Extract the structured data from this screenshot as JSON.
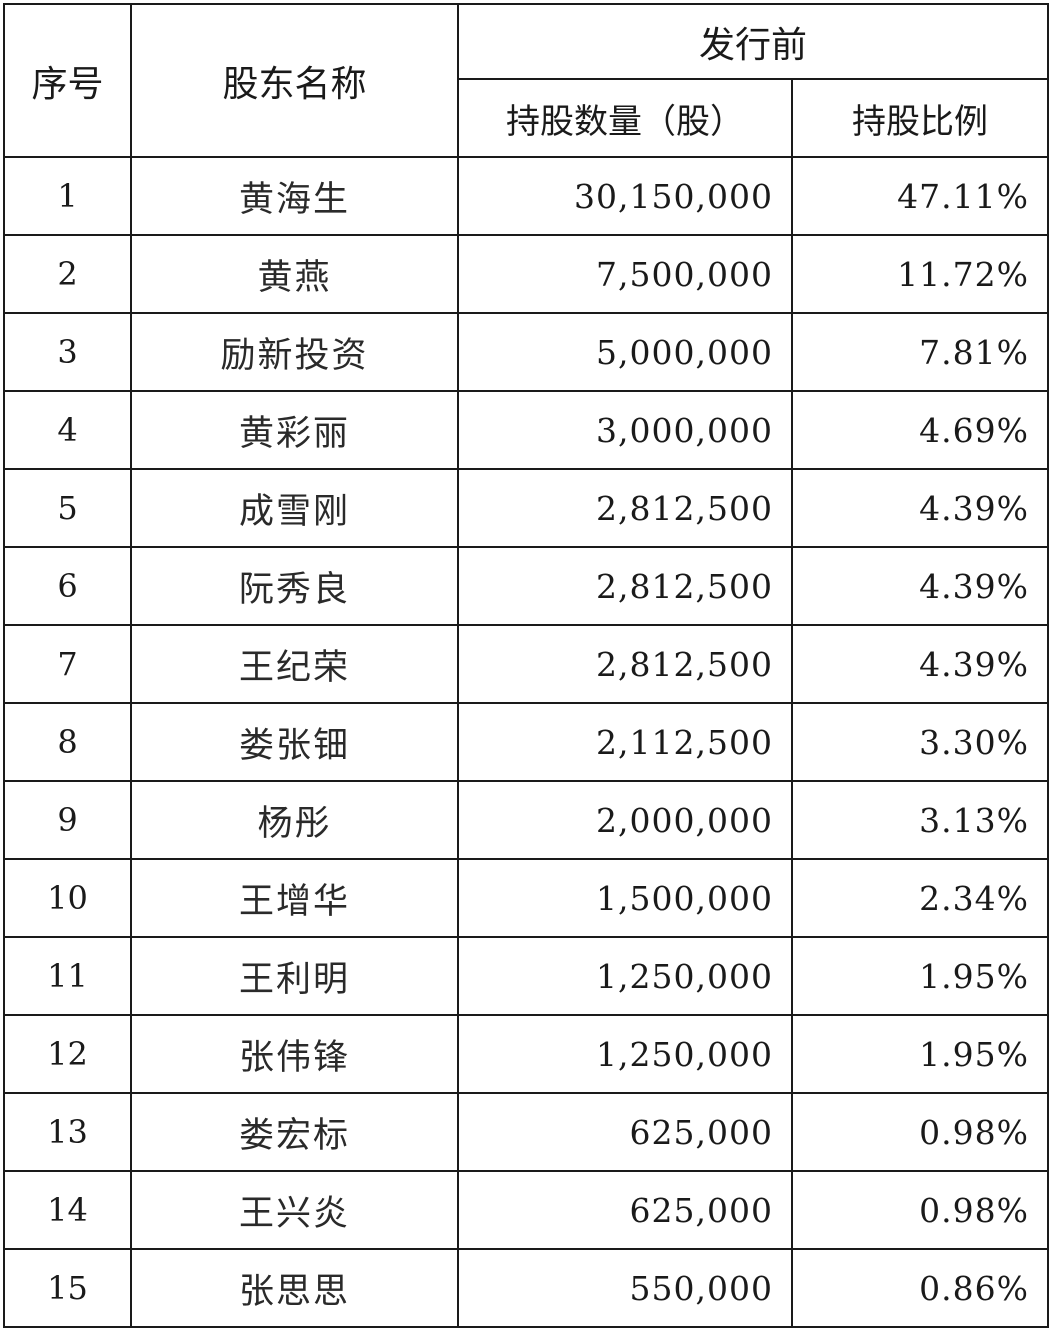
{
  "header": {
    "seq": "序号",
    "name": "股东名称",
    "group": "发行前",
    "shares": "持股数量（股）",
    "ratio": "持股比例"
  },
  "rows": [
    {
      "seq": "1",
      "name": "黄海生",
      "shares": "30,150,000",
      "ratio": "47.11%"
    },
    {
      "seq": "2",
      "name": "黄燕",
      "shares": "7,500,000",
      "ratio": "11.72%"
    },
    {
      "seq": "3",
      "name": "励新投资",
      "shares": "5,000,000",
      "ratio": "7.81%"
    },
    {
      "seq": "4",
      "name": "黄彩丽",
      "shares": "3,000,000",
      "ratio": "4.69%"
    },
    {
      "seq": "5",
      "name": "成雪刚",
      "shares": "2,812,500",
      "ratio": "4.39%"
    },
    {
      "seq": "6",
      "name": "阮秀良",
      "shares": "2,812,500",
      "ratio": "4.39%"
    },
    {
      "seq": "7",
      "name": "王纪荣",
      "shares": "2,812,500",
      "ratio": "4.39%"
    },
    {
      "seq": "8",
      "name": "娄张钿",
      "shares": "2,112,500",
      "ratio": "3.30%"
    },
    {
      "seq": "9",
      "name": "杨彤",
      "shares": "2,000,000",
      "ratio": "3.13%"
    },
    {
      "seq": "10",
      "name": "王增华",
      "shares": "1,500,000",
      "ratio": "2.34%"
    },
    {
      "seq": "11",
      "name": "王利明",
      "shares": "1,250,000",
      "ratio": "1.95%"
    },
    {
      "seq": "12",
      "name": "张伟锋",
      "shares": "1,250,000",
      "ratio": "1.95%"
    },
    {
      "seq": "13",
      "name": "娄宏标",
      "shares": "625,000",
      "ratio": "0.98%"
    },
    {
      "seq": "14",
      "name": "王兴炎",
      "shares": "625,000",
      "ratio": "0.98%"
    },
    {
      "seq": "15",
      "name": "张思思",
      "shares": "550,000",
      "ratio": "0.86%"
    }
  ]
}
